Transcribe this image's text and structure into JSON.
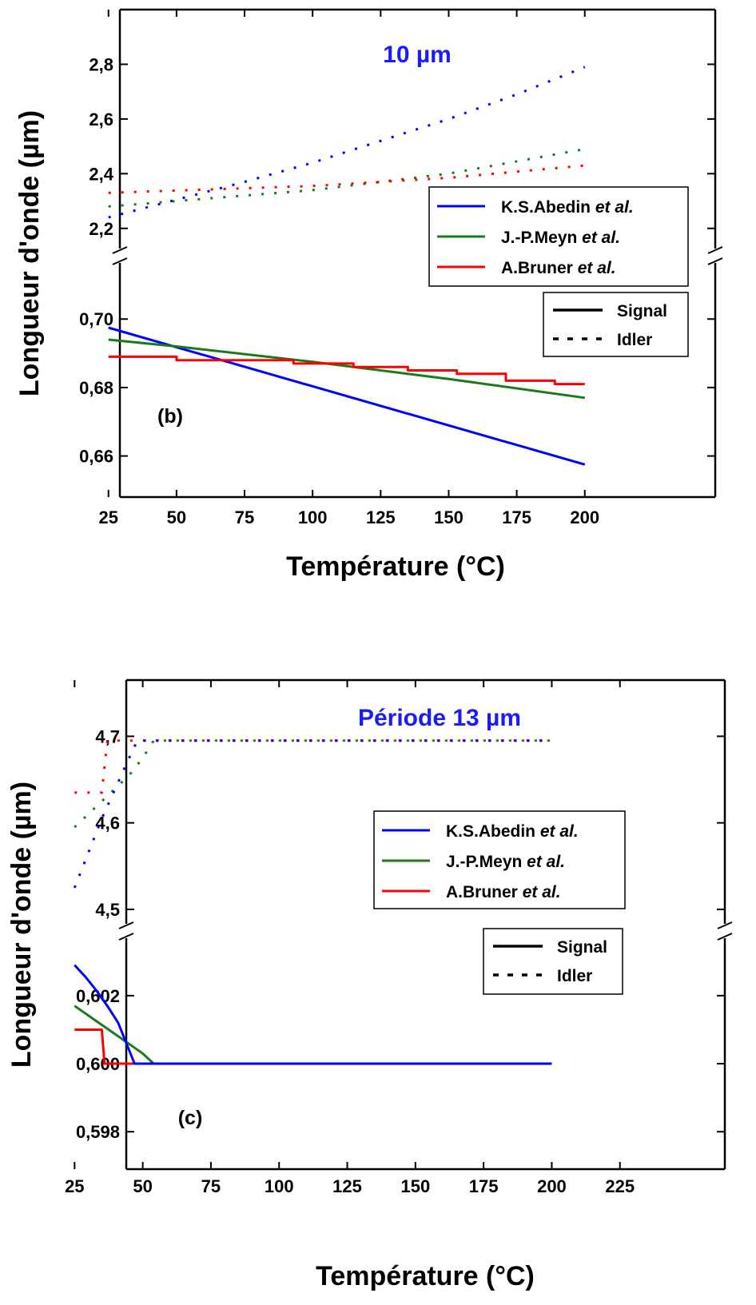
{
  "chart_data": [
    {
      "type": "line",
      "title": "10 µm",
      "panel_label": "(b)",
      "title_color": "#1a1aff",
      "xlabel": "Température (°C)",
      "ylabel": "Longueur d'onde (µm)",
      "xlim": [
        0,
        225
      ],
      "xticks": [
        "25",
        "50",
        "75",
        "100",
        "125",
        "150",
        "175",
        "200"
      ],
      "broken_y_axis": true,
      "upper_ylim": [
        2.1,
        3.0
      ],
      "upper_yticks": [
        "2,2",
        "2,4",
        "2,6",
        "2,8"
      ],
      "lower_ylim": [
        0.648,
        0.7185
      ],
      "lower_yticks": [
        "0,66",
        "0,68",
        "0,70"
      ],
      "legend_series": [
        {
          "label": "K.S.Abedin",
          "suffix": "et al.",
          "color": "#0000ff"
        },
        {
          "label": "J.-P.Meyn",
          "suffix": "et al.",
          "color": "#1a7a1a"
        },
        {
          "label": "A.Bruner",
          "suffix": "et al.",
          "color": "#ff0000"
        }
      ],
      "legend_styles": [
        {
          "label": "Signal",
          "style": "solid"
        },
        {
          "label": "Idler",
          "style": "dotted"
        }
      ],
      "signal_series": [
        {
          "series": "K.S.Abedin",
          "x": [
            25,
            200
          ],
          "y": [
            0.6975,
            0.6575
          ]
        },
        {
          "series": "J.-P.Meyn",
          "x": [
            25,
            50,
            100,
            150,
            200
          ],
          "y": [
            0.694,
            0.692,
            0.6875,
            0.6825,
            0.677
          ]
        },
        {
          "series": "A.Bruner",
          "x": [
            25,
            50,
            50,
            93,
            93,
            115,
            115,
            135,
            135,
            153,
            153,
            171,
            171,
            189,
            189,
            200
          ],
          "y": [
            0.689,
            0.689,
            0.688,
            0.688,
            0.687,
            0.687,
            0.686,
            0.686,
            0.685,
            0.685,
            0.684,
            0.684,
            0.682,
            0.682,
            0.681,
            0.681
          ]
        }
      ],
      "idler_series": [
        {
          "series": "K.S.Abedin",
          "x": [
            25,
            75,
            100,
            125,
            150,
            175,
            200
          ],
          "y": [
            2.24,
            2.37,
            2.44,
            2.52,
            2.6,
            2.69,
            2.79
          ]
        },
        {
          "series": "J.-P.Meyn",
          "x": [
            25,
            100,
            150,
            200
          ],
          "y": [
            2.28,
            2.34,
            2.4,
            2.49
          ]
        },
        {
          "series": "A.Bruner",
          "x": [
            25,
            100,
            150,
            200
          ],
          "y": [
            2.33,
            2.355,
            2.385,
            2.43
          ]
        }
      ]
    },
    {
      "type": "line",
      "title": "Période 13 µm",
      "panel_label": "(c)",
      "title_color": "#1a1aff",
      "xlabel": "Température (°C)",
      "ylabel": "Longueur d'onde (µm)",
      "xlim": [
        0,
        245
      ],
      "xticks": [
        "25",
        "50",
        "75",
        "100",
        "125",
        "150",
        "175",
        "200",
        "225"
      ],
      "broken_y_axis": true,
      "upper_ylim": [
        4.475,
        4.765
      ],
      "upper_yticks": [
        "4,5",
        "4,6",
        "4,7"
      ],
      "lower_ylim": [
        0.5969,
        0.6039
      ],
      "lower_yticks": [
        "0,598",
        "0,600",
        "0,602"
      ],
      "legend_series": [
        {
          "label": "K.S.Abedin",
          "suffix": "et al.",
          "color": "#0000ff"
        },
        {
          "label": "J.-P.Meyn",
          "suffix": "et al.",
          "color": "#1a7a1a"
        },
        {
          "label": "A.Bruner",
          "suffix": "et al.",
          "color": "#ff0000"
        }
      ],
      "legend_styles": [
        {
          "label": "Signal",
          "style": "solid"
        },
        {
          "label": "Idler",
          "style": "dotted"
        }
      ],
      "signal_series": [
        {
          "series": "A.Bruner",
          "x": [
            25,
            35,
            36,
            200
          ],
          "y": [
            0.601,
            0.601,
            0.6,
            0.6
          ]
        },
        {
          "series": "J.-P.Meyn",
          "x": [
            25,
            30,
            35,
            40,
            45,
            50,
            54,
            200
          ],
          "y": [
            0.6017,
            0.60142,
            0.60114,
            0.60086,
            0.60058,
            0.6003,
            0.6,
            0.6
          ]
        },
        {
          "series": "K.S.Abedin",
          "x": [
            25,
            29,
            33,
            37,
            41,
            44,
            47,
            200
          ],
          "y": [
            0.6029,
            0.60255,
            0.60215,
            0.6017,
            0.6012,
            0.6006,
            0.6,
            0.6
          ]
        }
      ],
      "idler_series": [
        {
          "series": "A.Bruner",
          "x": [
            25,
            35,
            37,
            200
          ],
          "y": [
            4.635,
            4.635,
            4.695,
            4.695
          ]
        },
        {
          "series": "J.-P.Meyn",
          "x": [
            25,
            30,
            35,
            40,
            45,
            50,
            54,
            200
          ],
          "y": [
            4.595,
            4.61,
            4.625,
            4.64,
            4.655,
            4.675,
            4.695,
            4.695
          ]
        },
        {
          "series": "K.S.Abedin",
          "x": [
            25,
            30,
            35,
            40,
            45,
            48,
            200
          ],
          "y": [
            4.525,
            4.565,
            4.605,
            4.64,
            4.675,
            4.695,
            4.695
          ]
        }
      ]
    }
  ]
}
